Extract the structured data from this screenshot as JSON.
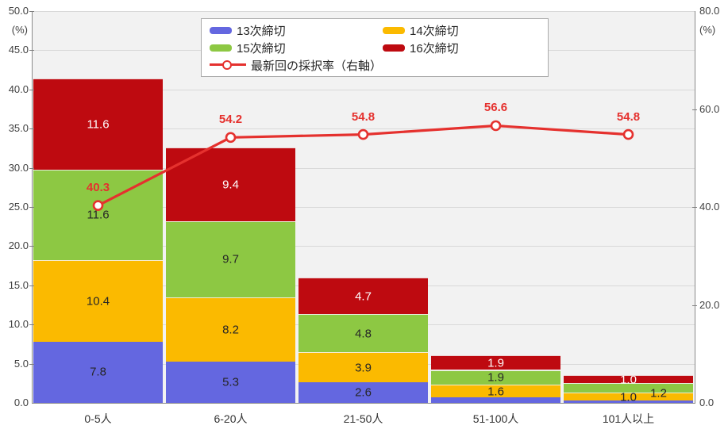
{
  "chart_data": {
    "type": "combo",
    "title": "",
    "categories": [
      "0-5人",
      "6-20人",
      "21-50人",
      "51-100人",
      "101人以上"
    ],
    "bar_series": [
      {
        "name": "13次締切",
        "color": "#6467E0",
        "label_color": "#262626",
        "values": [
          7.8,
          5.3,
          2.6,
          0.7,
          0.3
        ],
        "labels": [
          "7.8",
          "5.3",
          "2.6",
          "",
          ""
        ]
      },
      {
        "name": "14次締切",
        "color": "#FBBA00",
        "label_color": "#262626",
        "values": [
          10.4,
          8.2,
          3.9,
          1.6,
          1.0
        ],
        "labels": [
          "10.4",
          "8.2",
          "3.9",
          "1.6",
          "1.0"
        ]
      },
      {
        "name": "15次締切",
        "color": "#8DC843",
        "label_color": "#262626",
        "values": [
          11.6,
          9.7,
          4.8,
          1.9,
          1.2
        ],
        "labels": [
          "11.6",
          "9.7",
          "4.8",
          "1.9",
          "1.2"
        ]
      },
      {
        "name": "16次締切",
        "color": "#BE0A10",
        "label_color": "#FFFFFF",
        "values": [
          11.6,
          9.4,
          4.7,
          1.9,
          1.0
        ],
        "labels": [
          "11.6",
          "9.4",
          "4.7",
          "1.9",
          "1.0"
        ]
      }
    ],
    "line_series": {
      "name": "最新回の採択率（右軸）",
      "color": "#E5312E",
      "values": [
        40.3,
        54.2,
        54.8,
        56.6,
        54.8
      ],
      "labels": [
        "40.3",
        "54.2",
        "54.8",
        "56.6",
        "54.8"
      ]
    },
    "left_axis": {
      "unit": "(%)",
      "min": 0,
      "max": 50,
      "tick_step": 5,
      "tick_values": [
        0,
        5,
        10,
        15,
        20,
        25,
        30,
        35,
        40,
        45,
        50
      ],
      "tick_labels": [
        "0.0",
        "5.0",
        "10.0",
        "15.0",
        "20.0",
        "25.0",
        "30.0",
        "35.0",
        "40.0",
        "45.0",
        "50.0"
      ]
    },
    "right_axis": {
      "unit": "(%)",
      "min": 0,
      "max": 80,
      "tick_step": 20,
      "tick_values": [
        0,
        20,
        40,
        60,
        80
      ],
      "tick_labels": [
        "0.0",
        "20.0",
        "40.0",
        "60.0",
        "80.0"
      ]
    },
    "grid": true,
    "legend_position": "top-center"
  }
}
